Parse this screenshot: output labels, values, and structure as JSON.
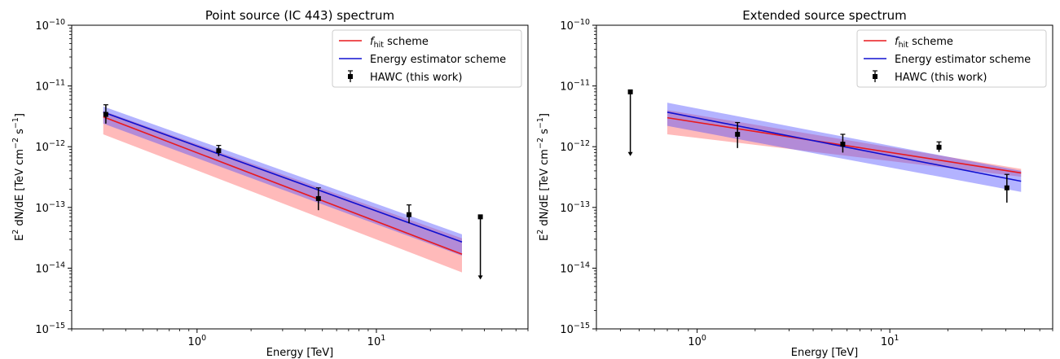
{
  "figure": {
    "xlabel": "Energy [TeV]",
    "ylabel_main": "dN/dE [TeV cm",
    "ylabel_tail": " s",
    "ylabel_prefix": "E",
    "ylabel_sup_e": "2",
    "ylabel_sup_cm": "−2",
    "ylabel_sup_s": "−1"
  },
  "legend": {
    "fhit_prefix": "f",
    "fhit_sub": "hit",
    "fhit_suffix": " scheme",
    "energy_label": "Energy estimator scheme",
    "hawc_label": "HAWC (this work)"
  },
  "colors": {
    "fhit": "#e8191d",
    "fhit_band": "#ff5a5a",
    "energy": "#1010d0",
    "energy_band": "#4a4aff",
    "points": "#000000"
  },
  "chart_data": [
    {
      "type": "line",
      "title": "Point source (IC 443) spectrum",
      "xlabel": "Energy [TeV]",
      "ylabel": "E² dN/dE [TeV cm⁻² s⁻¹]",
      "xscale": "log",
      "yscale": "log",
      "xlim": [
        0.2,
        70
      ],
      "ylim": [
        1e-15,
        1e-10
      ],
      "legend_position": "top-right",
      "grid": false,
      "x_ticks": [
        {
          "v": 1,
          "base": "10",
          "exp": "0"
        },
        {
          "v": 10,
          "base": "10",
          "exp": "1"
        }
      ],
      "y_ticks": [
        {
          "v": 1e-15,
          "base": "10",
          "exp": "−15"
        },
        {
          "v": 1e-14,
          "base": "10",
          "exp": "−14"
        },
        {
          "v": 1e-13,
          "base": "10",
          "exp": "−13"
        },
        {
          "v": 1e-12,
          "base": "10",
          "exp": "−12"
        },
        {
          "v": 1e-11,
          "base": "10",
          "exp": "−11"
        },
        {
          "v": 1e-10,
          "base": "10",
          "exp": "−10"
        }
      ],
      "series": [
        {
          "name": "f_hit scheme",
          "x": [
            0.3,
            30
          ],
          "y": [
            3.1e-12,
            1.7e-14
          ],
          "band_low": [
            1.6e-12,
            8.5e-15
          ],
          "band_high": [
            3.9e-12,
            3.1e-14
          ]
        },
        {
          "name": "Energy estimator scheme",
          "x": [
            0.3,
            30
          ],
          "y": [
            3.7e-12,
            2.7e-14
          ],
          "band_low": [
            2.4e-12,
            1.6e-14
          ],
          "band_high": [
            4.6e-12,
            3.6e-14
          ]
        }
      ],
      "points": [
        {
          "x": 0.31,
          "y": 3.4e-12,
          "lo": 2.4e-12,
          "hi": 4.9e-12
        },
        {
          "x": 1.32,
          "y": 8.6e-13,
          "lo": 7e-13,
          "hi": 1.05e-12
        },
        {
          "x": 4.75,
          "y": 1.4e-13,
          "lo": 9e-14,
          "hi": 2.1e-13
        },
        {
          "x": 15.2,
          "y": 7.6e-14,
          "lo": 5.5e-14,
          "hi": 1.1e-13
        }
      ],
      "upper_limits": [
        {
          "x": 38,
          "y": 7e-14,
          "to": 6.5e-15
        }
      ]
    },
    {
      "type": "line",
      "title": "Extended source spectrum",
      "xlabel": "Energy [TeV]",
      "ylabel": "E² dN/dE [TeV cm⁻² s⁻¹]",
      "xscale": "log",
      "yscale": "log",
      "xlim": [
        0.3,
        70
      ],
      "ylim": [
        1e-15,
        1e-10
      ],
      "legend_position": "top-right",
      "grid": false,
      "x_ticks": [
        {
          "v": 1,
          "base": "10",
          "exp": "0"
        },
        {
          "v": 10,
          "base": "10",
          "exp": "1"
        }
      ],
      "y_ticks": [
        {
          "v": 1e-15,
          "base": "10",
          "exp": "−15"
        },
        {
          "v": 1e-14,
          "base": "10",
          "exp": "−14"
        },
        {
          "v": 1e-13,
          "base": "10",
          "exp": "−13"
        },
        {
          "v": 1e-12,
          "base": "10",
          "exp": "−12"
        },
        {
          "v": 1e-11,
          "base": "10",
          "exp": "−11"
        },
        {
          "v": 1e-10,
          "base": "10",
          "exp": "−10"
        }
      ],
      "series": [
        {
          "name": "f_hit scheme",
          "x": [
            0.7,
            48
          ],
          "y": [
            3e-12,
            3.7e-13
          ],
          "band_low": [
            1.6e-12,
            3.2e-13
          ],
          "band_high": [
            4e-12,
            4.3e-13
          ]
        },
        {
          "name": "Energy estimator scheme",
          "x": [
            0.7,
            48
          ],
          "y": [
            3.7e-12,
            2.7e-13
          ],
          "band_low": [
            2.2e-12,
            1.8e-13
          ],
          "band_high": [
            5.3e-12,
            4e-13
          ]
        }
      ],
      "points": [
        {
          "x": 1.62,
          "y": 1.6e-12,
          "lo": 9.5e-13,
          "hi": 2.5e-12
        },
        {
          "x": 5.7,
          "y": 1.1e-12,
          "lo": 8e-13,
          "hi": 1.6e-12
        },
        {
          "x": 18.0,
          "y": 9.8e-13,
          "lo": 8.2e-13,
          "hi": 1.2e-12
        },
        {
          "x": 40.5,
          "y": 2.1e-13,
          "lo": 1.2e-13,
          "hi": 3.5e-13
        }
      ],
      "upper_limits": [
        {
          "x": 0.45,
          "y": 8e-12,
          "to": 7e-13
        }
      ]
    }
  ]
}
